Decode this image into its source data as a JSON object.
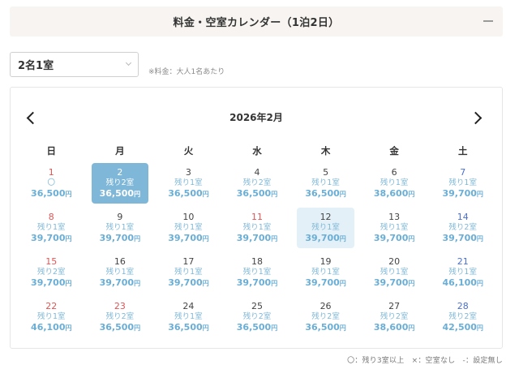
{
  "header": {
    "title": "料金・空室カレンダー（1泊2日）",
    "collapse_icon": "minus-icon"
  },
  "room_select": {
    "value": "2名1室"
  },
  "price_note": "※料金：大人1名あたり",
  "calendar": {
    "month_title": "2026年2月",
    "prev_icon": "chevron-left-icon",
    "next_icon": "chevron-right-icon",
    "weekdays": [
      "日",
      "月",
      "火",
      "水",
      "木",
      "金",
      "土"
    ],
    "currency": "円",
    "colors": {
      "sunday_holiday": "#e05555",
      "saturday": "#4a6fd1",
      "price": "#6aaed6",
      "selected_bg": "#7eb7d8",
      "hover_bg": "#e3f0f7"
    },
    "days": [
      {
        "day": "1",
        "status": "〇",
        "price": "36,500",
        "type": "sun"
      },
      {
        "day": "2",
        "status": "残り2室",
        "price": "36,500",
        "type": "weekday",
        "state": "selected"
      },
      {
        "day": "3",
        "status": "残り1室",
        "price": "36,500",
        "type": "weekday"
      },
      {
        "day": "4",
        "status": "残り2室",
        "price": "36,500",
        "type": "weekday"
      },
      {
        "day": "5",
        "status": "残り1室",
        "price": "36,500",
        "type": "weekday"
      },
      {
        "day": "6",
        "status": "残り1室",
        "price": "38,600",
        "type": "weekday"
      },
      {
        "day": "7",
        "status": "残り1室",
        "price": "39,700",
        "type": "sat"
      },
      {
        "day": "8",
        "status": "残り1室",
        "price": "39,700",
        "type": "sun"
      },
      {
        "day": "9",
        "status": "残り1室",
        "price": "39,700",
        "type": "weekday"
      },
      {
        "day": "10",
        "status": "残り1室",
        "price": "39,700",
        "type": "weekday"
      },
      {
        "day": "11",
        "status": "残り1室",
        "price": "39,700",
        "type": "sun"
      },
      {
        "day": "12",
        "status": "残り1室",
        "price": "39,700",
        "type": "weekday",
        "state": "hover"
      },
      {
        "day": "13",
        "status": "残り1室",
        "price": "39,700",
        "type": "weekday"
      },
      {
        "day": "14",
        "status": "残り2室",
        "price": "39,700",
        "type": "sat"
      },
      {
        "day": "15",
        "status": "残り2室",
        "price": "39,700",
        "type": "sun"
      },
      {
        "day": "16",
        "status": "残り1室",
        "price": "39,700",
        "type": "weekday"
      },
      {
        "day": "17",
        "status": "残り1室",
        "price": "39,700",
        "type": "weekday"
      },
      {
        "day": "18",
        "status": "残り1室",
        "price": "39,700",
        "type": "weekday"
      },
      {
        "day": "19",
        "status": "残り1室",
        "price": "39,700",
        "type": "weekday"
      },
      {
        "day": "20",
        "status": "残り1室",
        "price": "39,700",
        "type": "weekday"
      },
      {
        "day": "21",
        "status": "残り1室",
        "price": "46,100",
        "type": "sat"
      },
      {
        "day": "22",
        "status": "残り1室",
        "price": "46,100",
        "type": "sun"
      },
      {
        "day": "23",
        "status": "残り2室",
        "price": "36,500",
        "type": "sun"
      },
      {
        "day": "24",
        "status": "残り1室",
        "price": "36,500",
        "type": "weekday"
      },
      {
        "day": "25",
        "status": "残り2室",
        "price": "36,500",
        "type": "weekday"
      },
      {
        "day": "26",
        "status": "残り2室",
        "price": "36,500",
        "type": "weekday"
      },
      {
        "day": "27",
        "status": "残り2室",
        "price": "38,600",
        "type": "weekday"
      },
      {
        "day": "28",
        "status": "残り2室",
        "price": "42,500",
        "type": "sat"
      }
    ]
  },
  "legend": "〇：残り3室以上　×：空室なし　-：設定無し"
}
